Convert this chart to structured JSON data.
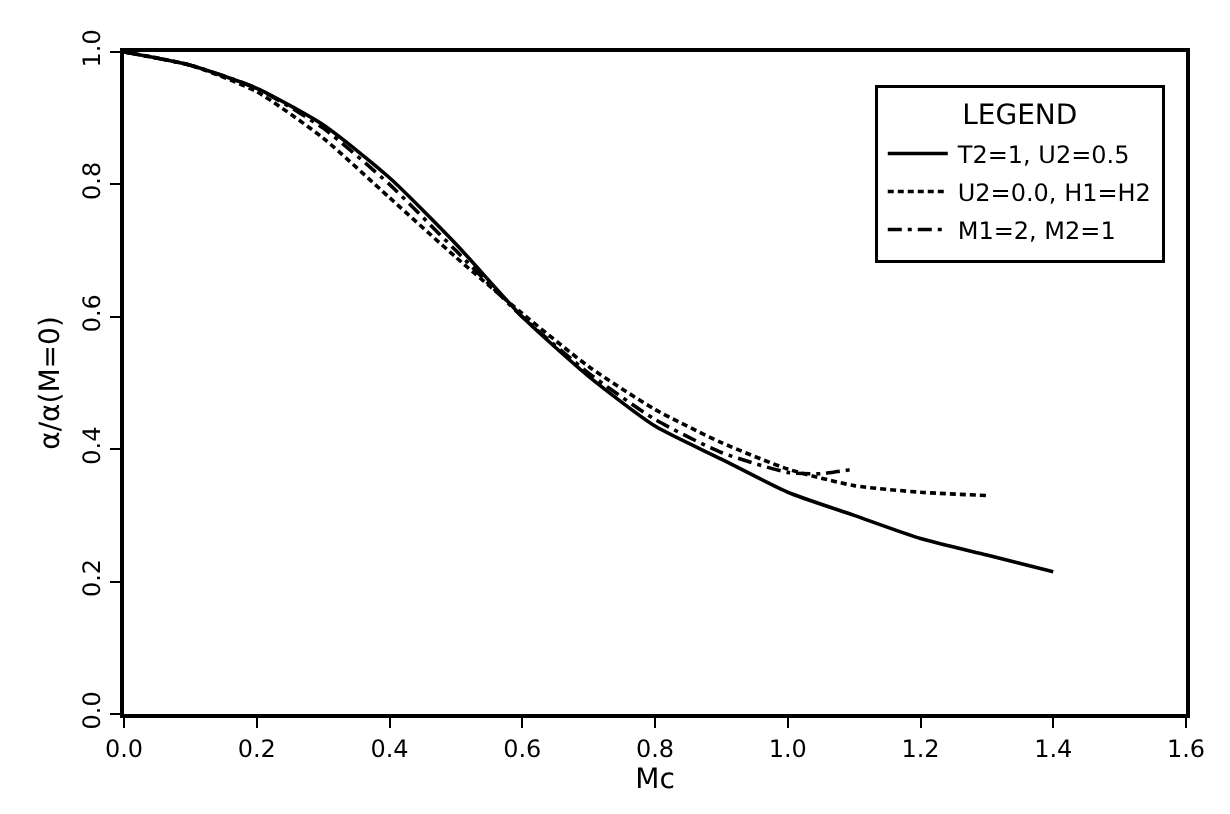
{
  "chart_data": {
    "type": "line",
    "xlabel": "Mc",
    "ylabel": "α/α(M=0)",
    "legend_title": "LEGEND",
    "legend": "top right",
    "grid": false,
    "marker": "none",
    "xlim": [
      0,
      1.6
    ],
    "xticks": [
      {
        "value": 0,
        "label": "0.0"
      },
      0.2,
      0.4,
      0.6,
      0.8,
      {
        "value": 1,
        "label": "1.0"
      },
      1.2,
      1.4,
      1.6
    ],
    "ylim": [
      0,
      1
    ],
    "yticks": [
      {
        "value": 0,
        "label": "0.0"
      },
      0.2,
      0.4,
      0.6,
      0.8,
      {
        "value": 1,
        "label": "1.0"
      }
    ],
    "series": [
      {
        "name": "T2=1, U2=0.5",
        "color": "#000000",
        "line_style": "solid",
        "x": [
          0,
          0.1,
          0.2,
          0.3,
          0.4,
          0.5,
          0.6,
          0.7,
          0.8,
          0.9,
          1.0,
          1.1,
          1.2,
          1.3,
          1.4
        ],
        "values": [
          1.0,
          0.98,
          0.945,
          0.89,
          0.81,
          0.71,
          0.6,
          0.51,
          0.435,
          0.385,
          0.335,
          0.3,
          0.265,
          0.24,
          0.215
        ]
      },
      {
        "name": "U2=0.0, H1=H2",
        "color": "#000000",
        "line_style": "dashed",
        "x": [
          0,
          0.1,
          0.2,
          0.3,
          0.4,
          0.5,
          0.6,
          0.7,
          0.8,
          0.9,
          1.0,
          1.1,
          1.2,
          1.3
        ],
        "values": [
          1.0,
          0.98,
          0.94,
          0.87,
          0.78,
          0.69,
          0.605,
          0.525,
          0.46,
          0.41,
          0.37,
          0.345,
          0.335,
          0.33
        ]
      },
      {
        "name": "M1=2, M2=1",
        "color": "#000000",
        "line_style": "dashdot",
        "x": [
          0,
          0.1,
          0.2,
          0.3,
          0.4,
          0.5,
          0.6,
          0.7,
          0.8,
          0.9,
          1.0,
          1.05,
          1.1
        ],
        "values": [
          1.0,
          0.98,
          0.945,
          0.885,
          0.8,
          0.7,
          0.6,
          0.515,
          0.445,
          0.395,
          0.365,
          0.363,
          0.37
        ]
      }
    ]
  }
}
